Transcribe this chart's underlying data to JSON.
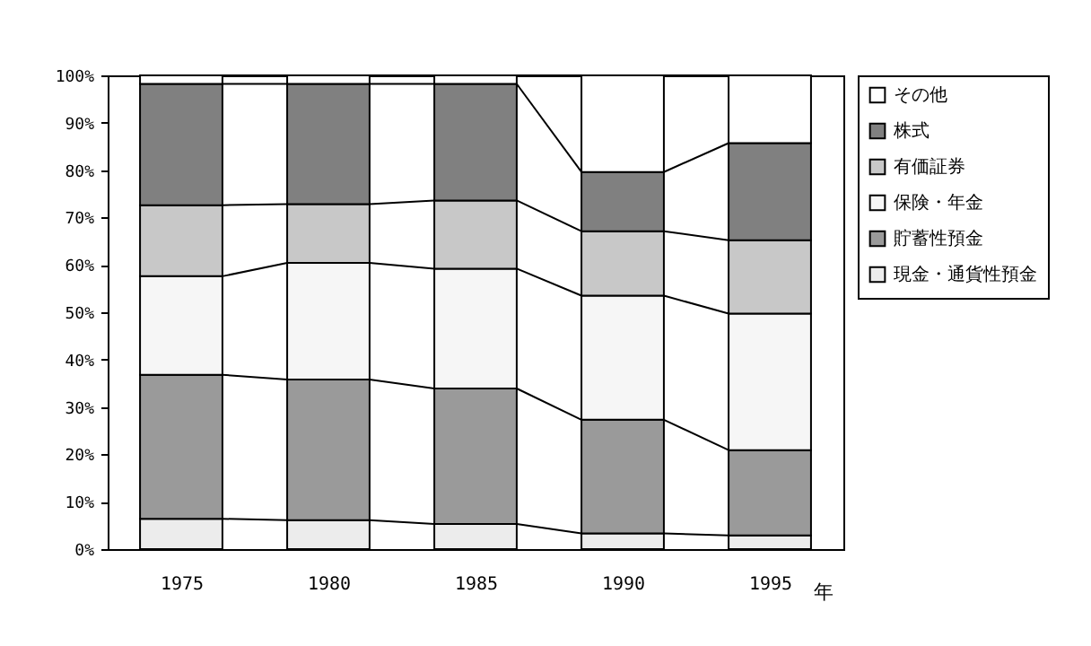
{
  "chart_data": {
    "type": "bar",
    "stacked": true,
    "xlabel": "年",
    "categories": [
      "1975",
      "1980",
      "1985",
      "1990",
      "1995"
    ],
    "series": [
      {
        "name": "現金・通貨性預金",
        "color": "#ececec",
        "values": [
          6.4,
          6.1,
          5.3,
          3.3,
          2.9
        ]
      },
      {
        "name": "貯蓄性預金",
        "color": "#9a9a9a",
        "values": [
          30.4,
          29.7,
          28.6,
          24.0,
          18.0
        ]
      },
      {
        "name": "保険・年金",
        "color": "#f6f6f6",
        "values": [
          20.8,
          24.6,
          25.3,
          26.2,
          28.8
        ]
      },
      {
        "name": "有価証券",
        "color": "#c8c8c8",
        "values": [
          15.0,
          12.4,
          14.4,
          13.6,
          15.5
        ]
      },
      {
        "name": "株式",
        "color": "#808080",
        "values": [
          25.6,
          25.4,
          24.6,
          12.5,
          20.5
        ]
      },
      {
        "name": "その他",
        "color": "#ffffff",
        "values": [
          1.8,
          1.8,
          1.8,
          20.4,
          14.3
        ]
      }
    ],
    "ylim": [
      0,
      100
    ],
    "yticks": [
      {
        "value": 0,
        "label": "0%"
      },
      {
        "value": 10,
        "label": "10%"
      },
      {
        "value": 20,
        "label": "20%"
      },
      {
        "value": 30,
        "label": "30%"
      },
      {
        "value": 40,
        "label": "40%"
      },
      {
        "value": 50,
        "label": "50%"
      },
      {
        "value": 60,
        "label": "60%"
      },
      {
        "value": 70,
        "label": "70%"
      },
      {
        "value": 80,
        "label": "80%"
      },
      {
        "value": 90,
        "label": "90%"
      },
      {
        "value": 100,
        "label": "100%"
      }
    ],
    "grid": false,
    "legend": "right"
  }
}
